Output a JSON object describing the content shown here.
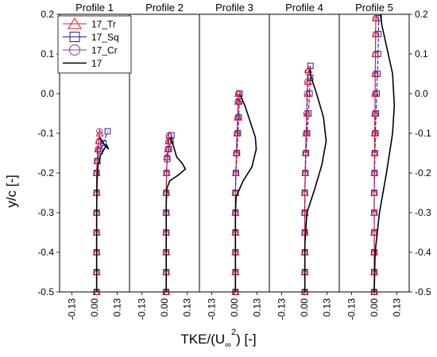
{
  "chart_data": {
    "type": "line",
    "xlabel_main": "TKE/(U",
    "xlabel_sub": "∞",
    "xlabel_sup": "2",
    "xlabel_end": ") [-]",
    "ylabel": "y/c [-]",
    "ylim": [
      -0.5,
      0.2
    ],
    "xlim": [
      -0.2,
      0.2
    ],
    "y_ticks": [
      0.2,
      0.1,
      0.0,
      -0.1,
      -0.2,
      -0.3,
      -0.4,
      -0.5
    ],
    "y_tick_labels": [
      "0.2",
      "0.1",
      "0.0",
      "-0.1",
      "-0.2",
      "-0.3",
      "-0.4",
      "-0.5"
    ],
    "x_ticks": [
      -0.13,
      0.0,
      0.13
    ],
    "x_tick_labels": [
      "-0.13",
      "0.00",
      "0.13"
    ],
    "grid": false,
    "legend_position": "top-left",
    "colors": {
      "tr": "#e8141c",
      "sq": "#1f1fa8",
      "cr": "#8a3aa0",
      "base": "#000000"
    },
    "legend": [
      {
        "key": "tr",
        "label": "17_Tr",
        "marker": "triangle"
      },
      {
        "key": "sq",
        "label": "17_Sq",
        "marker": "square"
      },
      {
        "key": "cr",
        "label": "17_Cr",
        "marker": "circle"
      },
      {
        "key": "base",
        "label": "17",
        "marker": "line"
      }
    ],
    "panels": [
      {
        "title": "Profile 1",
        "series": {
          "tr": [
            [
              0.012,
              -0.5
            ],
            [
              0.012,
              -0.45
            ],
            [
              0.012,
              -0.4
            ],
            [
              0.012,
              -0.35
            ],
            [
              0.012,
              -0.3
            ],
            [
              0.012,
              -0.25
            ],
            [
              0.012,
              -0.2
            ],
            [
              0.015,
              -0.17
            ],
            [
              0.02,
              -0.14
            ],
            [
              0.025,
              -0.12
            ],
            [
              0.03,
              -0.1
            ]
          ],
          "sq": [
            [
              0.012,
              -0.5
            ],
            [
              0.012,
              -0.45
            ],
            [
              0.012,
              -0.4
            ],
            [
              0.012,
              -0.35
            ],
            [
              0.012,
              -0.3
            ],
            [
              0.012,
              -0.25
            ],
            [
              0.012,
              -0.2
            ],
            [
              0.016,
              -0.17
            ],
            [
              0.03,
              -0.145
            ],
            [
              0.05,
              -0.125
            ],
            [
              0.075,
              -0.095
            ]
          ],
          "cr": [
            [
              0.012,
              -0.5
            ],
            [
              0.012,
              -0.45
            ],
            [
              0.012,
              -0.4
            ],
            [
              0.012,
              -0.35
            ],
            [
              0.012,
              -0.3
            ],
            [
              0.012,
              -0.25
            ],
            [
              0.012,
              -0.2
            ],
            [
              0.015,
              -0.17
            ],
            [
              0.02,
              -0.14
            ],
            [
              0.025,
              -0.12
            ],
            [
              0.028,
              -0.095
            ]
          ],
          "base": [
            [
              0.012,
              -0.5
            ],
            [
              0.012,
              -0.3
            ],
            [
              0.014,
              -0.22
            ],
            [
              0.02,
              -0.18
            ],
            [
              0.035,
              -0.155
            ],
            [
              0.055,
              -0.14
            ],
            [
              0.07,
              -0.13
            ],
            [
              0.08,
              -0.14
            ],
            [
              0.05,
              -0.125
            ],
            [
              0.03,
              -0.11
            ]
          ]
        }
      },
      {
        "title": "Profile 2",
        "series": {
          "tr": [
            [
              0.01,
              -0.5
            ],
            [
              0.01,
              -0.45
            ],
            [
              0.01,
              -0.4
            ],
            [
              0.01,
              -0.35
            ],
            [
              0.01,
              -0.3
            ],
            [
              0.01,
              -0.25
            ],
            [
              0.012,
              -0.2
            ],
            [
              0.015,
              -0.16
            ],
            [
              0.02,
              -0.14
            ],
            [
              0.025,
              -0.12
            ],
            [
              0.028,
              -0.105
            ]
          ],
          "sq": [
            [
              0.01,
              -0.5
            ],
            [
              0.01,
              -0.45
            ],
            [
              0.01,
              -0.4
            ],
            [
              0.01,
              -0.35
            ],
            [
              0.01,
              -0.3
            ],
            [
              0.01,
              -0.25
            ],
            [
              0.012,
              -0.2
            ],
            [
              0.016,
              -0.165
            ],
            [
              0.025,
              -0.14
            ],
            [
              0.035,
              -0.12
            ],
            [
              0.04,
              -0.105
            ]
          ],
          "cr": [
            [
              0.01,
              -0.5
            ],
            [
              0.01,
              -0.45
            ],
            [
              0.01,
              -0.4
            ],
            [
              0.01,
              -0.35
            ],
            [
              0.01,
              -0.3
            ],
            [
              0.01,
              -0.25
            ],
            [
              0.012,
              -0.2
            ],
            [
              0.015,
              -0.16
            ],
            [
              0.02,
              -0.14
            ],
            [
              0.024,
              -0.12
            ],
            [
              0.026,
              -0.105
            ]
          ],
          "base": [
            [
              0.01,
              -0.5
            ],
            [
              0.01,
              -0.28
            ],
            [
              0.013,
              -0.24
            ],
            [
              0.03,
              -0.22
            ],
            [
              0.08,
              -0.205
            ],
            [
              0.12,
              -0.19
            ],
            [
              0.1,
              -0.175
            ],
            [
              0.07,
              -0.16
            ],
            [
              0.05,
              -0.13
            ],
            [
              0.035,
              -0.11
            ]
          ]
        }
      },
      {
        "title": "Profile 3",
        "series": {
          "tr": [
            [
              0.006,
              -0.5
            ],
            [
              0.006,
              -0.45
            ],
            [
              0.006,
              -0.4
            ],
            [
              0.006,
              -0.35
            ],
            [
              0.006,
              -0.3
            ],
            [
              0.006,
              -0.25
            ],
            [
              0.008,
              -0.2
            ],
            [
              0.012,
              -0.15
            ],
            [
              0.016,
              -0.1
            ],
            [
              0.02,
              -0.06
            ],
            [
              0.022,
              -0.02
            ],
            [
              0.023,
              0.0
            ]
          ],
          "sq": [
            [
              0.006,
              -0.5
            ],
            [
              0.006,
              -0.45
            ],
            [
              0.006,
              -0.4
            ],
            [
              0.006,
              -0.35
            ],
            [
              0.006,
              -0.3
            ],
            [
              0.006,
              -0.25
            ],
            [
              0.009,
              -0.2
            ],
            [
              0.015,
              -0.15
            ],
            [
              0.02,
              -0.1
            ],
            [
              0.025,
              -0.06
            ],
            [
              0.028,
              -0.02
            ],
            [
              0.03,
              0.0
            ]
          ],
          "cr": [
            [
              0.006,
              -0.5
            ],
            [
              0.006,
              -0.45
            ],
            [
              0.006,
              -0.4
            ],
            [
              0.006,
              -0.35
            ],
            [
              0.006,
              -0.3
            ],
            [
              0.006,
              -0.25
            ],
            [
              0.008,
              -0.2
            ],
            [
              0.011,
              -0.15
            ],
            [
              0.015,
              -0.1
            ],
            [
              0.018,
              -0.06
            ],
            [
              0.02,
              -0.02
            ],
            [
              0.022,
              0.0
            ]
          ],
          "base": [
            [
              0.006,
              -0.5
            ],
            [
              0.006,
              -0.3
            ],
            [
              0.01,
              -0.26
            ],
            [
              0.05,
              -0.22
            ],
            [
              0.1,
              -0.185
            ],
            [
              0.125,
              -0.14
            ],
            [
              0.12,
              -0.11
            ],
            [
              0.09,
              -0.07
            ],
            [
              0.06,
              -0.03
            ],
            [
              0.035,
              -0.005
            ]
          ]
        }
      },
      {
        "title": "Profile 4",
        "series": {
          "tr": [
            [
              0.003,
              -0.5
            ],
            [
              0.003,
              -0.45
            ],
            [
              0.003,
              -0.4
            ],
            [
              0.003,
              -0.35
            ],
            [
              0.003,
              -0.3
            ],
            [
              0.003,
              -0.25
            ],
            [
              0.005,
              -0.2
            ],
            [
              0.008,
              -0.15
            ],
            [
              0.012,
              -0.1
            ],
            [
              0.016,
              -0.05
            ],
            [
              0.02,
              0.0
            ],
            [
              0.022,
              0.03
            ],
            [
              0.024,
              0.06
            ]
          ],
          "sq": [
            [
              0.003,
              -0.5
            ],
            [
              0.003,
              -0.45
            ],
            [
              0.003,
              -0.4
            ],
            [
              0.003,
              -0.35
            ],
            [
              0.003,
              -0.3
            ],
            [
              0.003,
              -0.25
            ],
            [
              0.006,
              -0.2
            ],
            [
              0.01,
              -0.15
            ],
            [
              0.016,
              -0.1
            ],
            [
              0.024,
              -0.05
            ],
            [
              0.03,
              0.0
            ],
            [
              0.034,
              0.04
            ],
            [
              0.035,
              0.07
            ]
          ],
          "cr": [
            [
              0.003,
              -0.5
            ],
            [
              0.003,
              -0.45
            ],
            [
              0.003,
              -0.4
            ],
            [
              0.003,
              -0.35
            ],
            [
              0.003,
              -0.3
            ],
            [
              0.003,
              -0.25
            ],
            [
              0.005,
              -0.2
            ],
            [
              0.007,
              -0.15
            ],
            [
              0.01,
              -0.1
            ],
            [
              0.013,
              -0.05
            ],
            [
              0.016,
              0.0
            ],
            [
              0.018,
              0.03
            ],
            [
              0.02,
              0.055
            ]
          ],
          "base": [
            [
              0.003,
              -0.5
            ],
            [
              0.003,
              -0.38
            ],
            [
              0.015,
              -0.3
            ],
            [
              0.06,
              -0.24
            ],
            [
              0.1,
              -0.18
            ],
            [
              0.125,
              -0.12
            ],
            [
              0.11,
              -0.06
            ],
            [
              0.07,
              0.0
            ],
            [
              0.04,
              0.04
            ],
            [
              0.03,
              0.06
            ]
          ]
        }
      },
      {
        "title": "Profile 5",
        "series": {
          "tr": [
            [
              0.0,
              -0.5
            ],
            [
              0.0,
              -0.45
            ],
            [
              0.0,
              -0.4
            ],
            [
              0.0,
              -0.35
            ],
            [
              0.0,
              -0.3
            ],
            [
              0.0,
              -0.25
            ],
            [
              0.001,
              -0.2
            ],
            [
              0.002,
              -0.15
            ],
            [
              0.003,
              -0.1
            ],
            [
              0.004,
              -0.05
            ],
            [
              0.005,
              0.0
            ],
            [
              0.006,
              0.05
            ],
            [
              0.007,
              0.1
            ],
            [
              0.008,
              0.15
            ],
            [
              0.009,
              0.19
            ]
          ],
          "sq": [
            [
              0.0,
              -0.5
            ],
            [
              0.0,
              -0.45
            ],
            [
              0.0,
              -0.4
            ],
            [
              0.0,
              -0.35
            ],
            [
              0.0,
              -0.3
            ],
            [
              0.0,
              -0.25
            ],
            [
              0.002,
              -0.2
            ],
            [
              0.004,
              -0.15
            ],
            [
              0.007,
              -0.1
            ],
            [
              0.01,
              -0.05
            ],
            [
              0.014,
              0.0
            ],
            [
              0.018,
              0.05
            ],
            [
              0.022,
              0.1
            ],
            [
              0.024,
              0.15
            ],
            [
              0.026,
              0.19
            ]
          ],
          "cr": [
            [
              0.0,
              -0.5
            ],
            [
              0.0,
              -0.45
            ],
            [
              0.0,
              -0.4
            ],
            [
              0.0,
              -0.35
            ],
            [
              0.0,
              -0.3
            ],
            [
              0.0,
              -0.25
            ],
            [
              0.001,
              -0.2
            ],
            [
              0.002,
              -0.15
            ],
            [
              0.003,
              -0.1
            ],
            [
              0.004,
              -0.05
            ],
            [
              0.005,
              0.0
            ],
            [
              0.006,
              0.05
            ],
            [
              0.007,
              0.1
            ],
            [
              0.008,
              0.15
            ],
            [
              0.009,
              0.19
            ]
          ],
          "base": [
            [
              0.0,
              -0.5
            ],
            [
              0.005,
              -0.4
            ],
            [
              0.03,
              -0.3
            ],
            [
              0.07,
              -0.2
            ],
            [
              0.105,
              -0.1
            ],
            [
              0.115,
              -0.03
            ],
            [
              0.105,
              0.05
            ],
            [
              0.07,
              0.12
            ],
            [
              0.045,
              0.17
            ],
            [
              0.035,
              0.2
            ]
          ]
        }
      }
    ]
  }
}
